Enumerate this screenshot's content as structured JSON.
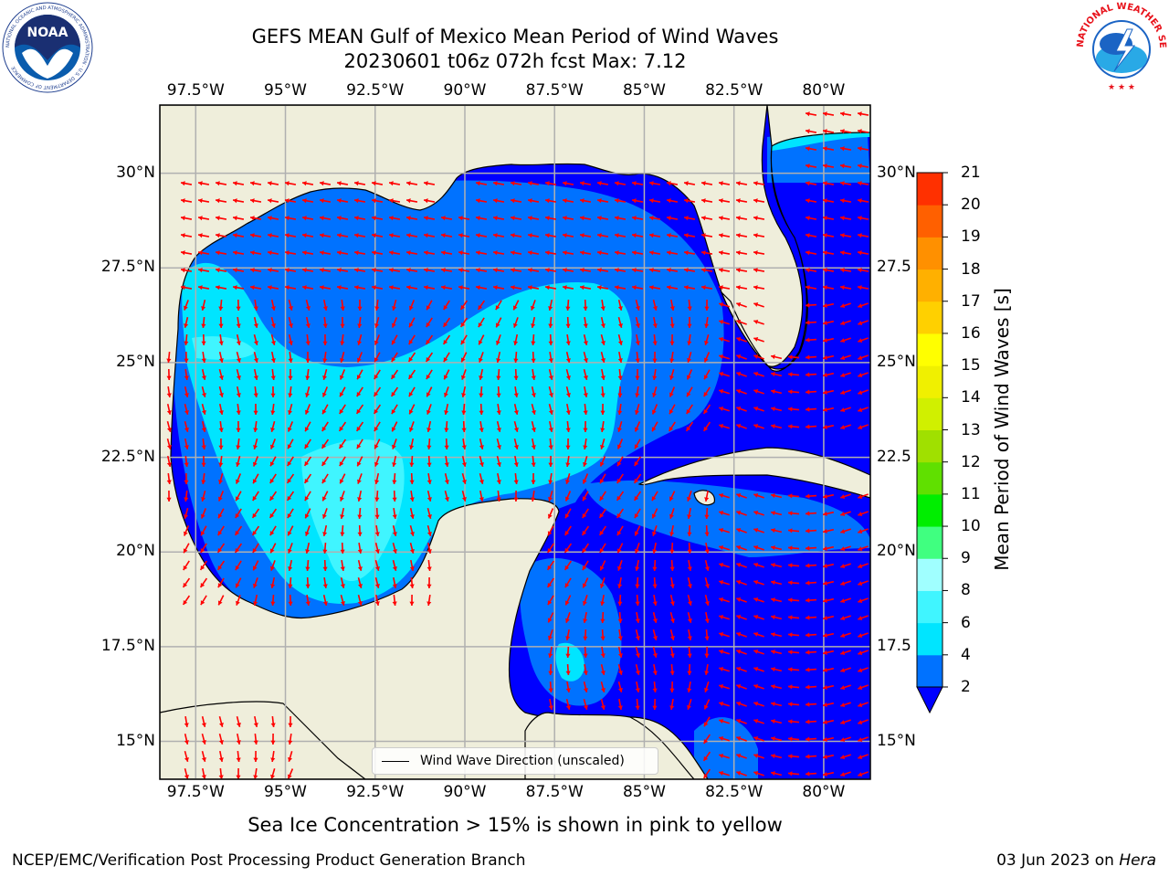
{
  "title": {
    "line1": "GEFS MEAN Gulf of Mexico Mean Period of Wind Waves",
    "line2": "20230601 t06z 072h fcst   Max: 7.12"
  },
  "map": {
    "lon_range": [
      -98.5,
      -78.7
    ],
    "lat_range": [
      14.0,
      31.8
    ],
    "x_ticks": [
      "97.5°W",
      "95°W",
      "92.5°W",
      "90°W",
      "87.5°W",
      "85°W",
      "82.5°W",
      "80°W"
    ],
    "x_tick_values": [
      -97.5,
      -95,
      -92.5,
      -90,
      -87.5,
      -85,
      -82.5,
      -80
    ],
    "y_ticks_left": [
      "30°N",
      "27.5°N",
      "25°N",
      "22.5°N",
      "20°N",
      "17.5°N",
      "15°N"
    ],
    "y_ticks_right": [
      "30°N",
      "27.5",
      "25°N",
      "22.5",
      "20°N",
      "17.5",
      "15°N"
    ],
    "y_tick_values": [
      30,
      27.5,
      25,
      22.5,
      20,
      17.5,
      15
    ],
    "land_color": "#efeedb",
    "arrow_color": "#ff0000",
    "grid_color": "#b0b0b0"
  },
  "colorbar": {
    "label": "Mean Period of Wind Waves [s]",
    "ticks": [
      "2",
      "4",
      "6",
      "8",
      "9",
      "10",
      "11",
      "12",
      "13",
      "14",
      "15",
      "16",
      "17",
      "18",
      "19",
      "20",
      "21"
    ],
    "colors": [
      "#0072ff",
      "#00e5ff",
      "#40f5ff",
      "#a0ffff",
      "#40ff80",
      "#00ee00",
      "#60e000",
      "#a0e000",
      "#d0f000",
      "#f0f000",
      "#ffff00",
      "#ffd000",
      "#ffb000",
      "#ff9000",
      "#ff6000",
      "#ff3000"
    ],
    "under_color": "#0000ff"
  },
  "legend": {
    "label": "Wind Wave Direction (unscaled)"
  },
  "subtitle": "Sea Ice Concentration > 15% is shown in pink to yellow",
  "footer": {
    "left": "NCEP/EMC/Verification Post Processing Product Generation Branch",
    "right_prefix": "03 Jun 2023 on ",
    "right_host": "Hera"
  },
  "logos": {
    "noaa_text": "NOAA",
    "noaa_ring": "NATIONAL OCEANIC AND ATMOSPHERIC ADMINISTRATION · U.S. DEPARTMENT OF COMMERCE",
    "nws_ring": "NATIONAL WEATHER SERVICE"
  }
}
